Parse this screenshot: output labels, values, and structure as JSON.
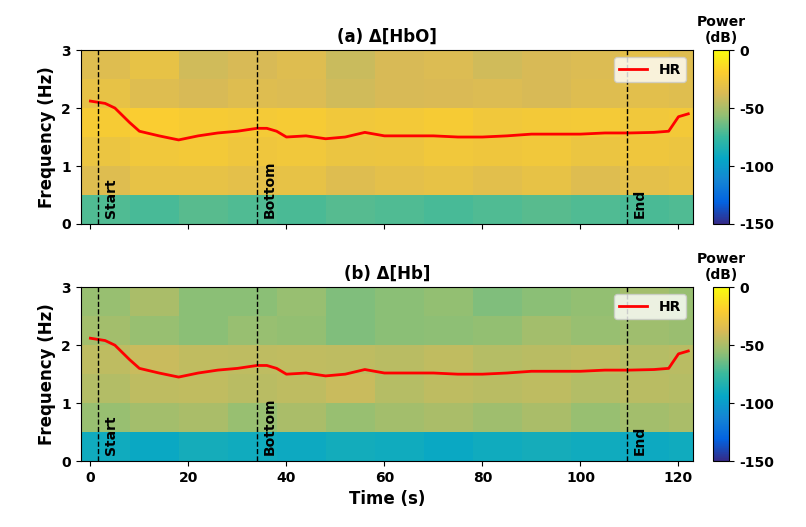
{
  "chart_data": [
    {
      "type": "heatmap",
      "title": "(a) Δ[HbO]",
      "y_label": "Frequency (Hz)",
      "xlim": [
        -2,
        123
      ],
      "ylim": [
        0,
        3
      ],
      "xticks": [
        0,
        20,
        40,
        60,
        80,
        100,
        120
      ],
      "yticks": [
        0,
        1,
        2,
        3
      ],
      "tick_labels": "y",
      "x_edges": [
        -2,
        8,
        18,
        28,
        38,
        48,
        58,
        68,
        78,
        88,
        98,
        108,
        118,
        123
      ],
      "y_edges": [
        0,
        0.5,
        1,
        1.5,
        2,
        2.5,
        3
      ],
      "cells": [
        [
          -70,
          -72,
          -68,
          -70,
          -71,
          -69,
          -70,
          -72,
          -70,
          -68,
          -70,
          -71,
          -70
        ],
        [
          -35,
          -30,
          -30,
          -32,
          -30,
          -35,
          -32,
          -30,
          -33,
          -30,
          -35,
          -32,
          -30
        ],
        [
          -28,
          -25,
          -24,
          -26,
          -25,
          -28,
          -27,
          -25,
          -26,
          -25,
          -28,
          -26,
          -27
        ],
        [
          -22,
          -20,
          -22,
          -23,
          -22,
          -25,
          -24,
          -22,
          -25,
          -24,
          -23,
          -25,
          -24
        ],
        [
          -30,
          -35,
          -38,
          -35,
          -36,
          -40,
          -38,
          -37,
          -36,
          -38,
          -35,
          -33,
          -34
        ],
        [
          -35,
          -30,
          -40,
          -38,
          -35,
          -42,
          -38,
          -36,
          -40,
          -38,
          -36,
          -32,
          -35
        ]
      ],
      "color_range": [
        -150,
        0
      ],
      "color_ticks": [
        0,
        -50,
        -100,
        -150
      ],
      "colorbar_label": "Power\n(dB)",
      "markers": [
        {
          "x": 1.5,
          "label": "Start"
        },
        {
          "x": 34,
          "label": "Bottom"
        },
        {
          "x": 109.5,
          "label": "End"
        }
      ],
      "legend": "upper right",
      "series": [
        {
          "name": "HR",
          "color": "#ff0000",
          "x": [
            0,
            3,
            5,
            8,
            10,
            14,
            18,
            22,
            26,
            30,
            34,
            36,
            38,
            40,
            44,
            48,
            52,
            56,
            60,
            65,
            70,
            75,
            80,
            85,
            90,
            95,
            100,
            105,
            110,
            115,
            118,
            120,
            122
          ],
          "values": [
            2.12,
            2.08,
            2.0,
            1.75,
            1.6,
            1.52,
            1.45,
            1.52,
            1.57,
            1.6,
            1.65,
            1.65,
            1.6,
            1.5,
            1.52,
            1.47,
            1.5,
            1.58,
            1.52,
            1.52,
            1.52,
            1.5,
            1.5,
            1.52,
            1.55,
            1.55,
            1.55,
            1.57,
            1.57,
            1.58,
            1.6,
            1.85,
            1.9
          ]
        }
      ]
    },
    {
      "type": "heatmap",
      "title": "(b) Δ[Hb]",
      "x_label": "Time (s)",
      "y_label": "Frequency (Hz)",
      "xlim": [
        -2,
        123
      ],
      "ylim": [
        0,
        3
      ],
      "xticks": [
        0,
        20,
        40,
        60,
        80,
        100,
        120
      ],
      "yticks": [
        0,
        1,
        2,
        3
      ],
      "x_edges": [
        -2,
        8,
        18,
        28,
        38,
        48,
        58,
        68,
        78,
        88,
        98,
        108,
        118,
        123
      ],
      "y_edges": [
        0,
        0.5,
        1,
        1.5,
        2,
        2.5,
        3
      ],
      "cells": [
        [
          -90,
          -92,
          -88,
          -90,
          -91,
          -89,
          -90,
          -92,
          -90,
          -88,
          -90,
          -91,
          -90
        ],
        [
          -55,
          -52,
          -50,
          -55,
          -50,
          -55,
          -52,
          -50,
          -53,
          -50,
          -55,
          -52,
          -50
        ],
        [
          -48,
          -45,
          -44,
          -46,
          -45,
          -42,
          -47,
          -45,
          -46,
          -45,
          -48,
          -46,
          -47
        ],
        [
          -45,
          -42,
          -44,
          -45,
          -44,
          -45,
          -46,
          -44,
          -47,
          -46,
          -45,
          -47,
          -46
        ],
        [
          -52,
          -55,
          -58,
          -55,
          -56,
          -60,
          -58,
          -57,
          -56,
          -52,
          -55,
          -53,
          -54
        ],
        [
          -55,
          -50,
          -58,
          -58,
          -55,
          -60,
          -58,
          -56,
          -60,
          -58,
          -56,
          -52,
          -55
        ]
      ],
      "color_range": [
        -150,
        0
      ],
      "color_ticks": [
        0,
        -50,
        -100,
        -150
      ],
      "colorbar_label": "Power\n(dB)",
      "markers": [
        {
          "x": 1.5,
          "label": "Start"
        },
        {
          "x": 34,
          "label": "Bottom"
        },
        {
          "x": 109.5,
          "label": "End"
        }
      ],
      "legend": "upper right",
      "series": [
        {
          "name": "HR",
          "color": "#ff0000",
          "x": [
            0,
            3,
            5,
            8,
            10,
            14,
            18,
            22,
            26,
            30,
            34,
            36,
            38,
            40,
            44,
            48,
            52,
            56,
            60,
            65,
            70,
            75,
            80,
            85,
            90,
            95,
            100,
            105,
            110,
            115,
            118,
            120,
            122
          ],
          "values": [
            2.12,
            2.08,
            2.0,
            1.75,
            1.6,
            1.52,
            1.45,
            1.52,
            1.57,
            1.6,
            1.65,
            1.65,
            1.6,
            1.5,
            1.52,
            1.47,
            1.5,
            1.58,
            1.52,
            1.52,
            1.52,
            1.5,
            1.5,
            1.52,
            1.55,
            1.55,
            1.55,
            1.57,
            1.57,
            1.58,
            1.6,
            1.85,
            1.9
          ]
        }
      ]
    }
  ]
}
